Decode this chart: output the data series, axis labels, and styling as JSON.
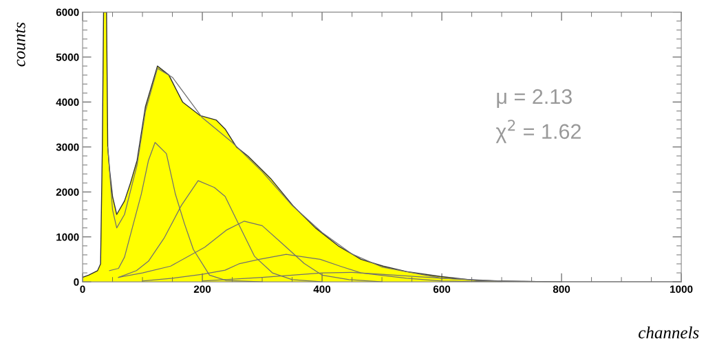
{
  "chart_data": {
    "type": "area",
    "xlabel": "channels",
    "ylabel": "counts",
    "xlim": [
      0,
      1000
    ],
    "xticks": [
      0,
      200,
      400,
      600,
      800,
      1000
    ],
    "ylim": [
      0,
      6000
    ],
    "yticks": [
      0,
      1000,
      2000,
      3000,
      4000,
      5000,
      6000
    ],
    "grid": false,
    "legend": false,
    "marker": "none",
    "series": [
      {
        "color": "#ffff00",
        "x": [
          0,
          10,
          25,
          30,
          33,
          35,
          40,
          42,
          45,
          50,
          57,
          70,
          80,
          91,
          105,
          125,
          144,
          167,
          196,
          223,
          238,
          257,
          276,
          314,
          351,
          389,
          427,
          465,
          502,
          541,
          597,
          658,
          733,
          800,
          1000
        ],
        "values": [
          100,
          150,
          250,
          400,
          3000,
          6000,
          6000,
          3000,
          2500,
          1900,
          1500,
          1800,
          2200,
          2700,
          3900,
          4800,
          4600,
          4000,
          3700,
          3600,
          3400,
          3000,
          2800,
          2300,
          1700,
          1200,
          800,
          500,
          350,
          230,
          120,
          30,
          10,
          0,
          0
        ]
      },
      {
        "type": "line",
        "color": "#707070",
        "x": [
          42,
          50,
          57,
          70,
          91,
          105,
          125,
          150,
          200,
          250,
          300,
          350,
          400,
          450,
          500,
          600,
          700,
          800
        ],
        "values": [
          3000,
          1600,
          1200,
          1500,
          2600,
          3800,
          4750,
          4550,
          3650,
          3100,
          2450,
          1700,
          1100,
          620,
          330,
          80,
          10,
          0
        ]
      },
      {
        "type": "line",
        "color": "#707070",
        "x": [
          45,
          60,
          70,
          83,
          98,
          110,
          121,
          140,
          155,
          170,
          185,
          212,
          240,
          300
        ],
        "values": [
          250,
          300,
          550,
          1200,
          1950,
          2700,
          3100,
          2850,
          1950,
          1300,
          720,
          150,
          30,
          0
        ]
      },
      {
        "type": "line",
        "color": "#707070",
        "x": [
          60,
          90,
          110,
          136,
          165,
          193,
          220,
          238,
          260,
          287,
          317,
          350,
          400
        ],
        "values": [
          100,
          250,
          460,
          970,
          1700,
          2250,
          2100,
          1900,
          1300,
          570,
          200,
          50,
          0
        ]
      },
      {
        "type": "line",
        "color": "#707070",
        "x": [
          60,
          100,
          147,
          204,
          240,
          270,
          300,
          332,
          370,
          400,
          445,
          500
        ],
        "values": [
          100,
          200,
          350,
          770,
          1150,
          1350,
          1250,
          870,
          410,
          150,
          50,
          0
        ]
      },
      {
        "type": "line",
        "color": "#707070",
        "x": [
          100,
          150,
          200,
          238,
          261,
          295,
          340,
          397,
          430,
          465,
          541,
          600,
          700
        ],
        "values": [
          20,
          80,
          170,
          260,
          400,
          500,
          610,
          500,
          350,
          200,
          80,
          20,
          0
        ]
      },
      {
        "type": "line",
        "color": "#707070",
        "x": [
          200,
          300,
          400,
          450,
          500,
          600,
          700,
          800
        ],
        "values": [
          20,
          100,
          200,
          210,
          170,
          80,
          20,
          0
        ]
      }
    ],
    "annotations": [
      {
        "text": "μ = 2.13"
      },
      {
        "text": "χ$^{2}$ = 1.62"
      }
    ]
  }
}
